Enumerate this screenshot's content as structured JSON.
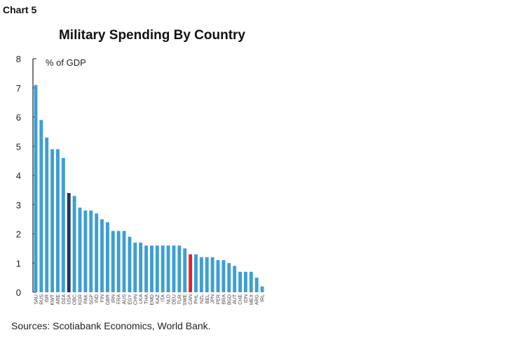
{
  "header": {
    "chart_label": "Chart 5"
  },
  "footer": {
    "source": "Sources: Scotiabank Economics, World Bank."
  },
  "colors": {
    "default": "#3d9fd3",
    "dark": "#1f3560",
    "highlight": "#e8202a",
    "axis": "#222222"
  },
  "chart_data": {
    "type": "bar",
    "title": "Military Spending By Country",
    "ylabel": "% of GDP",
    "xlabel": "",
    "ylim": [
      0,
      8
    ],
    "yticks": [
      0,
      1,
      2,
      3,
      4,
      5,
      6,
      7,
      8
    ],
    "grid": false,
    "categories": [
      "SAU",
      "RUS",
      "ISR",
      "KWT",
      "ARE",
      "DZA",
      "USA",
      "OBC",
      "KOR",
      "PAK",
      "SGP",
      "IND",
      "FIN",
      "GBR",
      "IRN",
      "FRA",
      "AUS",
      "EGY",
      "CHN",
      "LKA",
      "THA",
      "EMD",
      "KAZ",
      "ITA",
      "NLD",
      "DEU",
      "TUR",
      "SWE",
      "CAN",
      "PHL",
      "NZL",
      "BEL",
      "JPN",
      "PER",
      "BRA",
      "BGD",
      "AUT",
      "CHE",
      "IDN",
      "MEX",
      "ARG",
      "IRL"
    ],
    "values": [
      7.1,
      5.9,
      5.3,
      4.9,
      4.9,
      4.6,
      3.4,
      3.3,
      2.9,
      2.8,
      2.8,
      2.7,
      2.5,
      2.4,
      2.1,
      2.1,
      2.1,
      1.9,
      1.7,
      1.7,
      1.6,
      1.6,
      1.6,
      1.6,
      1.6,
      1.6,
      1.6,
      1.5,
      1.3,
      1.3,
      1.2,
      1.2,
      1.2,
      1.1,
      1.1,
      1.0,
      0.9,
      0.7,
      0.7,
      0.7,
      0.5,
      0.2
    ],
    "dark_category": "USA",
    "highlight_category": "CAN"
  }
}
